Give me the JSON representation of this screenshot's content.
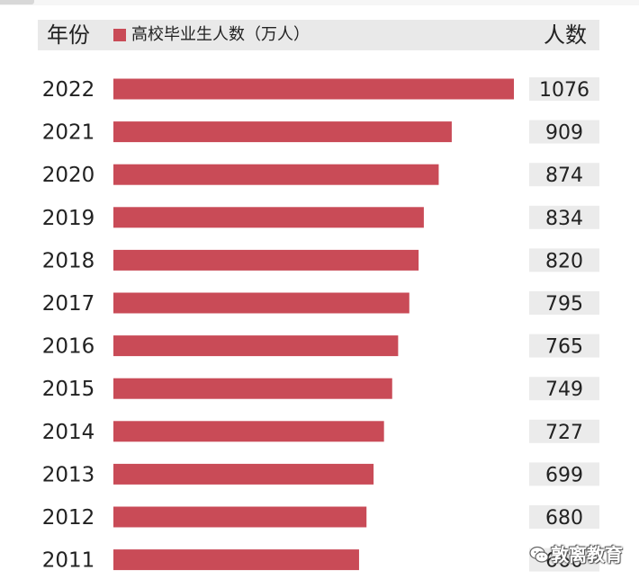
{
  "header": {
    "year_title": "年份",
    "legend_text": "高校毕业生人数（万人）",
    "count_title": "人数"
  },
  "colors": {
    "bar": "#c94b57",
    "value_bg": "#ebebeb",
    "header_bg": "#e9e9e9"
  },
  "watermark": {
    "text": "敦离教育",
    "icon": "wechat-icon"
  },
  "chart_data": {
    "type": "bar",
    "orientation": "horizontal",
    "categories": [
      "2022",
      "2021",
      "2020",
      "2019",
      "2018",
      "2017",
      "2016",
      "2015",
      "2014",
      "2013",
      "2012",
      "2011"
    ],
    "series": [
      {
        "name": "高校毕业生人数（万人）",
        "values": [
          1076,
          909,
          874,
          834,
          820,
          795,
          765,
          749,
          727,
          699,
          680,
          660
        ]
      }
    ],
    "data_labels": [
      "1076",
      "909",
      "874",
      "834",
      "820",
      "795",
      "765",
      "749",
      "727",
      "699",
      "680",
      "660"
    ],
    "grid": false,
    "legend_position": "top"
  }
}
